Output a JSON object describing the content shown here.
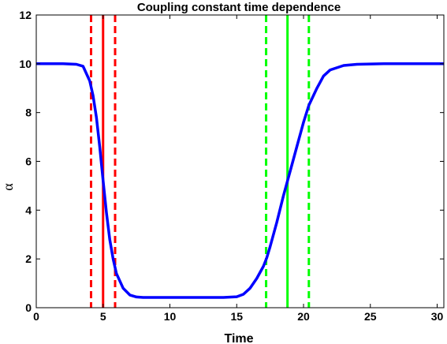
{
  "chart_data": {
    "type": "line",
    "title": "Coupling constant time dependence",
    "xlabel": "Time",
    "ylabel": "α",
    "xlim": [
      0,
      30.5
    ],
    "ylim": [
      0,
      12
    ],
    "x_ticks": [
      0,
      5,
      10,
      15,
      20,
      25,
      30
    ],
    "y_ticks": [
      0,
      2,
      4,
      6,
      8,
      10,
      12
    ],
    "grid": false,
    "series": [
      {
        "color": "#0000ff",
        "style": "solid",
        "x": [
          0,
          1,
          2,
          3,
          3.5,
          4,
          4.25,
          4.5,
          4.75,
          5,
          5.25,
          5.5,
          5.75,
          6,
          6.5,
          7,
          7.5,
          8,
          9,
          10,
          12,
          14,
          15,
          15.5,
          16,
          16.5,
          17,
          17.25,
          17.5,
          18,
          18.5,
          18.8,
          19,
          19.5,
          20,
          20.4,
          21,
          21.5,
          22,
          23,
          24,
          26,
          28,
          30,
          30.5
        ],
        "y": [
          10,
          10,
          10,
          9.98,
          9.9,
          9.3,
          8.7,
          7.8,
          6.6,
          5.2,
          3.9,
          2.8,
          2.0,
          1.4,
          0.8,
          0.52,
          0.44,
          0.42,
          0.42,
          0.42,
          0.42,
          0.42,
          0.45,
          0.55,
          0.8,
          1.2,
          1.7,
          2.05,
          2.5,
          3.5,
          4.6,
          5.2,
          5.6,
          6.6,
          7.6,
          8.3,
          9.0,
          9.5,
          9.75,
          9.93,
          9.98,
          10,
          10,
          10,
          10
        ]
      }
    ],
    "vertical_lines": [
      {
        "x": 4.1,
        "color": "#ff0000",
        "style": "dashed"
      },
      {
        "x": 5.0,
        "color": "#ff0000",
        "style": "solid"
      },
      {
        "x": 5.9,
        "color": "#ff0000",
        "style": "dashed"
      },
      {
        "x": 17.2,
        "color": "#00ff00",
        "style": "dashed"
      },
      {
        "x": 18.8,
        "color": "#00ff00",
        "style": "solid"
      },
      {
        "x": 20.4,
        "color": "#00ff00",
        "style": "dashed"
      }
    ]
  }
}
